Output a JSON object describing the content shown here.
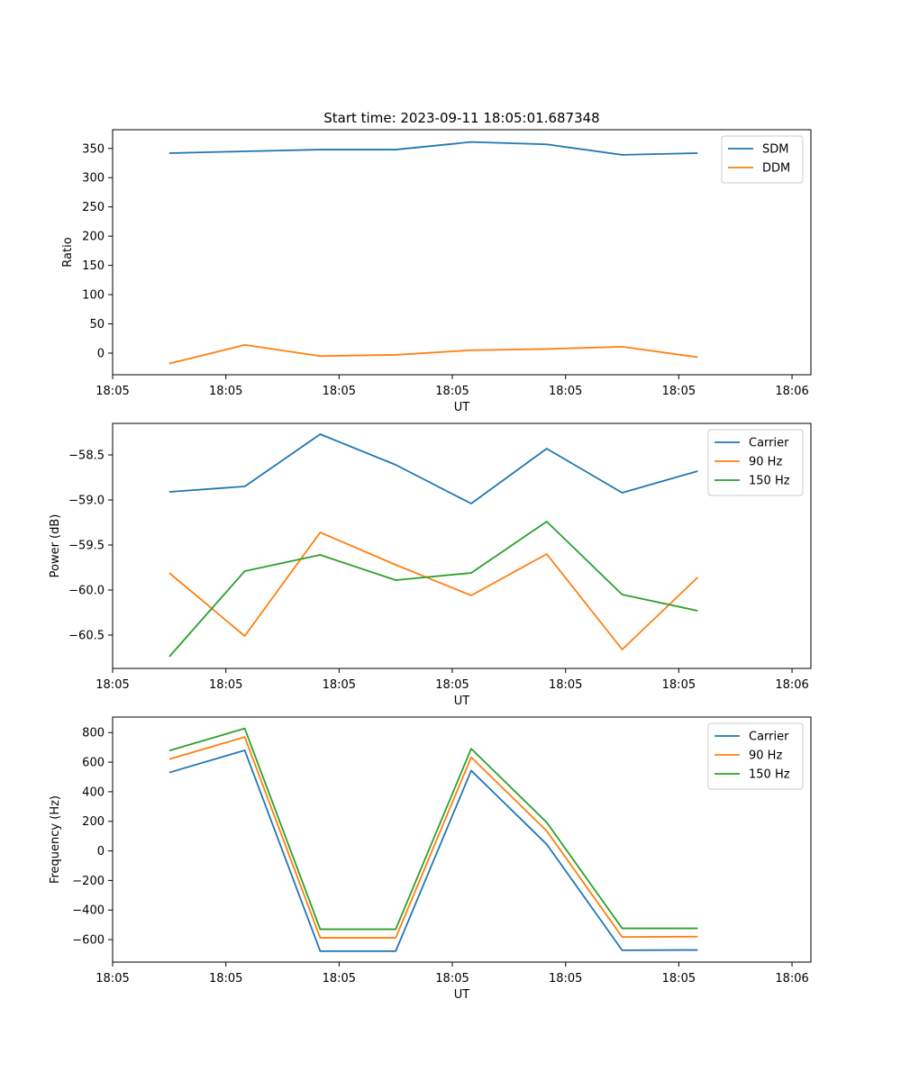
{
  "chart_data": [
    {
      "type": "line",
      "title": "Start time: 2023-09-11 18:05:01.687348",
      "xlabel": "UT",
      "ylabel": "Ratio",
      "x": [
        0,
        1,
        2,
        3,
        4,
        5,
        6,
        7
      ],
      "xlim": [
        -0.75,
        8.5
      ],
      "x_ticks": [
        -0.75,
        0.75,
        2.25,
        3.75,
        5.25,
        6.75,
        8.25
      ],
      "x_tick_labels": [
        "18:05",
        "18:05",
        "18:05",
        "18:05",
        "18:05",
        "18:05",
        "18:06"
      ],
      "ylim": [
        -37,
        382
      ],
      "y_ticks": [
        0,
        50,
        100,
        150,
        200,
        250,
        300,
        350
      ],
      "y_tick_labels": [
        "0",
        "50",
        "100",
        "150",
        "200",
        "250",
        "300",
        "350"
      ],
      "legend": "top-right",
      "series": [
        {
          "name": "SDM",
          "color": "#1f77b4",
          "values": [
            342,
            345,
            348,
            348,
            361,
            357,
            339,
            342
          ]
        },
        {
          "name": "DDM",
          "color": "#ff7f0e",
          "values": [
            -18,
            14,
            -5,
            -3,
            5,
            7,
            11,
            -7
          ]
        }
      ]
    },
    {
      "type": "line",
      "title": "",
      "xlabel": "UT",
      "ylabel": "Power (dB)",
      "x": [
        0,
        1,
        2,
        3,
        4,
        5,
        6,
        7
      ],
      "xlim": [
        -0.75,
        8.5
      ],
      "x_ticks": [
        -0.75,
        0.75,
        2.25,
        3.75,
        5.25,
        6.75,
        8.25
      ],
      "x_tick_labels": [
        "18:05",
        "18:05",
        "18:05",
        "18:05",
        "18:05",
        "18:05",
        "18:06"
      ],
      "ylim": [
        -60.87,
        -58.15
      ],
      "y_ticks": [
        -60.5,
        -60.0,
        -59.5,
        -59.0,
        -58.5
      ],
      "y_tick_labels": [
        "−60.5",
        "−60.0",
        "−59.5",
        "−59.0",
        "−58.5"
      ],
      "legend": "top-right",
      "series": [
        {
          "name": "Carrier",
          "color": "#1f77b4",
          "values": [
            -58.91,
            -58.85,
            -58.27,
            -58.61,
            -59.04,
            -58.43,
            -58.92,
            -58.68
          ]
        },
        {
          "name": "90 Hz",
          "color": "#ff7f0e",
          "values": [
            -59.81,
            -60.51,
            -59.36,
            -59.72,
            -60.06,
            -59.6,
            -60.66,
            -59.86
          ]
        },
        {
          "name": "150 Hz",
          "color": "#2ca02c",
          "values": [
            -60.74,
            -59.79,
            -59.61,
            -59.89,
            -59.81,
            -59.24,
            -60.05,
            -60.23
          ]
        }
      ]
    },
    {
      "type": "line",
      "title": "",
      "xlabel": "UT",
      "ylabel": "Frequency (Hz)",
      "x": [
        0,
        1,
        2,
        3,
        4,
        5,
        6,
        7
      ],
      "xlim": [
        -0.75,
        8.5
      ],
      "x_ticks": [
        -0.75,
        0.75,
        2.25,
        3.75,
        5.25,
        6.75,
        8.25
      ],
      "x_tick_labels": [
        "18:05",
        "18:05",
        "18:05",
        "18:05",
        "18:05",
        "18:05",
        "18:06"
      ],
      "ylim": [
        -752,
        905
      ],
      "y_ticks": [
        -600,
        -400,
        -200,
        0,
        200,
        400,
        600,
        800
      ],
      "y_tick_labels": [
        "−600",
        "−400",
        "−200",
        "0",
        "200",
        "400",
        "600",
        "800"
      ],
      "legend": "top-right",
      "series": [
        {
          "name": "Carrier",
          "color": "#1f77b4",
          "values": [
            530,
            680,
            -678,
            -678,
            543,
            45,
            -672,
            -670
          ]
        },
        {
          "name": "90 Hz",
          "color": "#ff7f0e",
          "values": [
            620,
            770,
            -588,
            -588,
            633,
            135,
            -582,
            -580
          ]
        },
        {
          "name": "150 Hz",
          "color": "#2ca02c",
          "values": [
            678,
            828,
            -530,
            -530,
            691,
            193,
            -524,
            -524
          ]
        }
      ]
    }
  ]
}
